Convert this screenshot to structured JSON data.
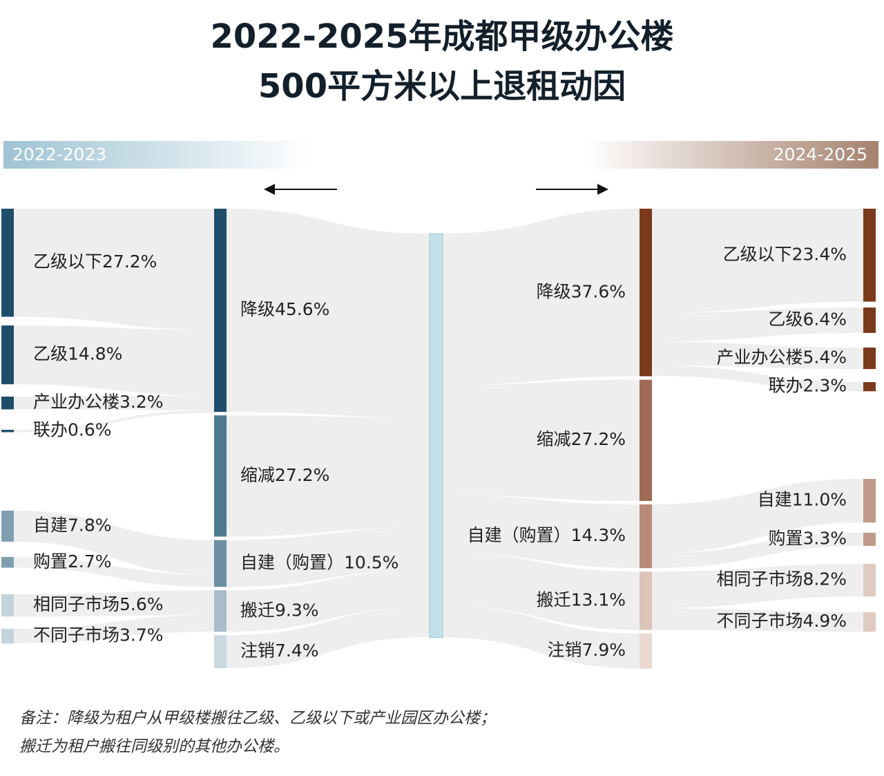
{
  "chart_data": {
    "type": "sankey",
    "title": [
      "2022-2025年成都甲级办公楼",
      "500平方米以上退租动因"
    ],
    "center_color": "#c3e0ea",
    "left": {
      "period": "2022-2023",
      "nodes": [
        {
          "name": "降级",
          "value": 45.6,
          "value_label": "45.6%",
          "color": "#1f4e6b",
          "children": [
            {
              "name": "乙级以下",
              "value": 27.2,
              "value_label": "27.2%",
              "color": "#1f4e6b"
            },
            {
              "name": "乙级",
              "value": 14.8,
              "value_label": "14.8%",
              "color": "#1f4e6b"
            },
            {
              "name": "产业办公楼",
              "value": 3.2,
              "value_label": "3.2%",
              "color": "#1f4e6b"
            },
            {
              "name": "联办",
              "value": 0.6,
              "value_label": "0.6%",
              "color": "#1f4e6b"
            }
          ]
        },
        {
          "name": "缩减",
          "value": 27.2,
          "value_label": "27.2%",
          "color": "#4d7a91",
          "children": []
        },
        {
          "name": "自建（购置）",
          "value": 10.5,
          "value_label": "10.5%",
          "color": "#6c8fa2",
          "children": [
            {
              "name": "自建",
              "value": 7.8,
              "value_label": "7.8%",
              "color": "#7f9fb0"
            },
            {
              "name": "购置",
              "value": 2.7,
              "value_label": "2.7%",
              "color": "#7f9fb0"
            }
          ]
        },
        {
          "name": "搬迁",
          "value": 9.3,
          "value_label": "9.3%",
          "color": "#a7bdc9",
          "children": [
            {
              "name": "相同子市场",
              "value": 5.6,
              "value_label": "5.6%",
              "color": "#c5d3dc"
            },
            {
              "name": "不同子市场",
              "value": 3.7,
              "value_label": "3.7%",
              "color": "#c5d3dc"
            }
          ]
        },
        {
          "name": "注销",
          "value": 7.4,
          "value_label": "7.4%",
          "color": "#cbd8e0",
          "children": []
        }
      ]
    },
    "right": {
      "period": "2024-2025",
      "nodes": [
        {
          "name": "降级",
          "value": 37.6,
          "value_label": "37.6%",
          "color": "#7b3a1c",
          "children": [
            {
              "name": "乙级以下",
              "value": 23.4,
              "value_label": "23.4%",
              "color": "#7b3a1c"
            },
            {
              "name": "乙级",
              "value": 6.4,
              "value_label": "6.4%",
              "color": "#7b3a1c"
            },
            {
              "name": "产业办公楼",
              "value": 5.4,
              "value_label": "5.4%",
              "color": "#7b3a1c"
            },
            {
              "name": "联办",
              "value": 2.3,
              "value_label": "2.3%",
              "color": "#7b3a1c"
            }
          ]
        },
        {
          "name": "缩减",
          "value": 27.2,
          "value_label": "27.2%",
          "color": "#a06a55",
          "children": []
        },
        {
          "name": "自建（购置）",
          "value": 14.3,
          "value_label": "14.3%",
          "color": "#b88a78",
          "children": [
            {
              "name": "自建",
              "value": 11,
              "value_label": "11.0%",
              "color": "#c09a88"
            },
            {
              "name": "购置",
              "value": 3.3,
              "value_label": "3.3%",
              "color": "#c09a88"
            }
          ]
        },
        {
          "name": "搬迁",
          "value": 13.1,
          "value_label": "13.1%",
          "color": "#dcc4b8",
          "children": [
            {
              "name": "相同子市场",
              "value": 8.2,
              "value_label": "8.2%",
              "color": "#dfcbc0"
            },
            {
              "name": "不同子市场",
              "value": 4.9,
              "value_label": "4.9%",
              "color": "#dfcbc0"
            }
          ]
        },
        {
          "name": "注销",
          "value": 7.9,
          "value_label": "7.9%",
          "color": "#ead9d1",
          "children": []
        }
      ]
    },
    "note": [
      "备注：降级为租户从甲级楼搬往乙级、乙级以下或产业园区办公楼；",
      "搬迁为租户搬往同级别的其他办公楼。"
    ]
  }
}
